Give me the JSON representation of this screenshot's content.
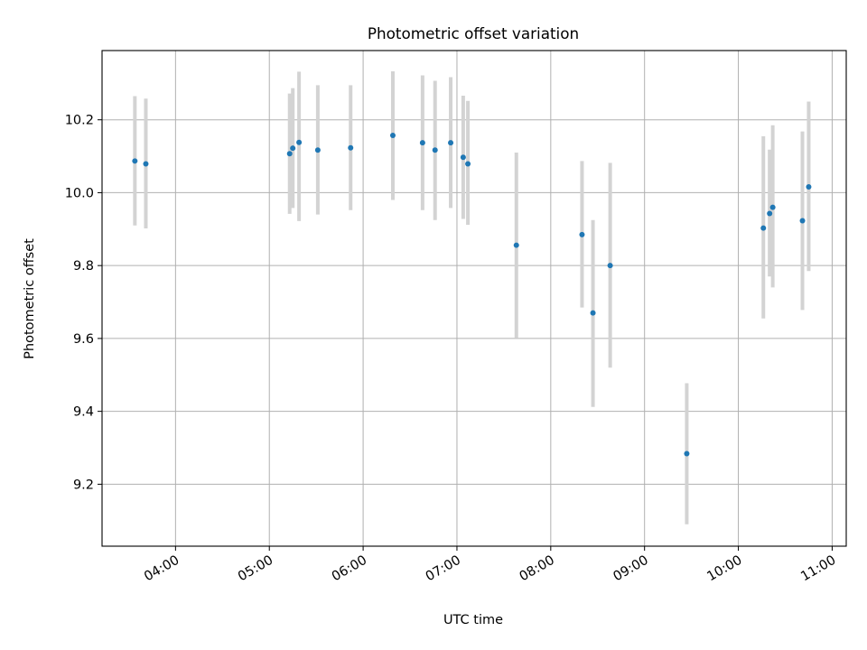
{
  "chart_data": {
    "type": "scatter",
    "title": "Photometric offset variation",
    "xlabel": "UTC time",
    "ylabel": "Photometric offset",
    "x_axis_type": "time",
    "xlim": [
      "03:13",
      "11:09"
    ],
    "ylim": [
      9.03,
      10.39
    ],
    "xticks": [
      "04:00",
      "05:00",
      "06:00",
      "07:00",
      "08:00",
      "09:00",
      "10:00",
      "11:00"
    ],
    "yticks": [
      "9.2",
      "9.4",
      "9.6",
      "9.8",
      "10.0",
      "10.2"
    ],
    "grid": true,
    "legend": "none",
    "colors": {
      "point": "#1f77b4",
      "errorbar": "#d3d3d3",
      "grid": "#b0b0b0"
    },
    "series": [
      {
        "points": [
          {
            "time": "03:34",
            "y": 10.087,
            "ylow": 9.91,
            "yhigh": 10.265
          },
          {
            "time": "03:41",
            "y": 10.079,
            "ylow": 9.902,
            "yhigh": 10.258
          },
          {
            "time": "05:13",
            "y": 10.107,
            "ylow": 9.942,
            "yhigh": 10.272
          },
          {
            "time": "05:15",
            "y": 10.122,
            "ylow": 9.958,
            "yhigh": 10.287
          },
          {
            "time": "05:19",
            "y": 10.138,
            "ylow": 9.922,
            "yhigh": 10.332
          },
          {
            "time": "05:31",
            "y": 10.117,
            "ylow": 9.94,
            "yhigh": 10.295
          },
          {
            "time": "05:52",
            "y": 10.123,
            "ylow": 9.952,
            "yhigh": 10.295
          },
          {
            "time": "06:19",
            "y": 10.157,
            "ylow": 9.98,
            "yhigh": 10.333
          },
          {
            "time": "06:38",
            "y": 10.137,
            "ylow": 9.952,
            "yhigh": 10.322
          },
          {
            "time": "06:46",
            "y": 10.117,
            "ylow": 9.925,
            "yhigh": 10.307
          },
          {
            "time": "06:56",
            "y": 10.137,
            "ylow": 9.958,
            "yhigh": 10.317
          },
          {
            "time": "07:04",
            "y": 10.097,
            "ylow": 9.928,
            "yhigh": 10.266
          },
          {
            "time": "07:07",
            "y": 10.079,
            "ylow": 9.912,
            "yhigh": 10.252
          },
          {
            "time": "07:38",
            "y": 9.856,
            "ylow": 9.602,
            "yhigh": 10.11
          },
          {
            "time": "08:20",
            "y": 9.885,
            "ylow": 9.685,
            "yhigh": 10.087
          },
          {
            "time": "08:27",
            "y": 9.67,
            "ylow": 9.412,
            "yhigh": 9.925
          },
          {
            "time": "08:38",
            "y": 9.8,
            "ylow": 9.52,
            "yhigh": 10.082
          },
          {
            "time": "09:27",
            "y": 9.284,
            "ylow": 9.09,
            "yhigh": 9.477
          },
          {
            "time": "10:16",
            "y": 9.903,
            "ylow": 9.655,
            "yhigh": 10.155
          },
          {
            "time": "10:20",
            "y": 9.943,
            "ylow": 9.77,
            "yhigh": 10.118
          },
          {
            "time": "10:22",
            "y": 9.96,
            "ylow": 9.74,
            "yhigh": 10.185
          },
          {
            "time": "10:41",
            "y": 9.923,
            "ylow": 9.678,
            "yhigh": 10.168
          },
          {
            "time": "10:45",
            "y": 10.016,
            "ylow": 9.785,
            "yhigh": 10.25
          }
        ]
      }
    ]
  }
}
